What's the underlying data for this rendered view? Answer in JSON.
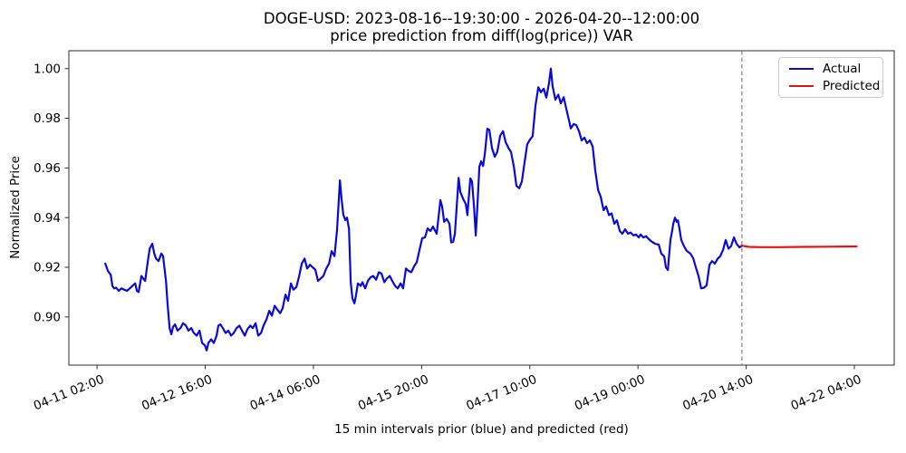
{
  "title": {
    "line1": "DOGE-USD: 2023-08-16--19:30:00 - 2026-04-20--12:00:00",
    "line2": "price prediction from diff(log(price)) VAR"
  },
  "chart_data": {
    "type": "line",
    "title": "DOGE-USD: 2023-08-16--19:30:00 - 2026-04-20--12:00:00\nprice prediction from diff(log(price)) VAR",
    "xlabel": "15 min intervals prior (blue) and predicted (red)",
    "ylabel": "Normalized Price",
    "x_unit": "hours since 04-11 00:00, 15 min interval data",
    "grid": false,
    "legend_position": "upper right",
    "xlim": [
      -7.9,
      282.0
    ],
    "ylim": [
      0.8806,
      1.0072
    ],
    "x_ticks": [
      {
        "pos": 2,
        "label": "04-11 02:00"
      },
      {
        "pos": 40,
        "label": "04-12 16:00"
      },
      {
        "pos": 78,
        "label": "04-14 06:00"
      },
      {
        "pos": 116,
        "label": "04-15 20:00"
      },
      {
        "pos": 154,
        "label": "04-17 10:00"
      },
      {
        "pos": 192,
        "label": "04-19 00:00"
      },
      {
        "pos": 230,
        "label": "04-20 14:00"
      },
      {
        "pos": 268,
        "label": "04-22 04:00"
      }
    ],
    "y_ticks": [
      {
        "pos": 0.9,
        "label": "0.90"
      },
      {
        "pos": 0.92,
        "label": "0.92"
      },
      {
        "pos": 0.94,
        "label": "0.94"
      },
      {
        "pos": 0.96,
        "label": "0.96"
      },
      {
        "pos": 0.98,
        "label": "0.98"
      },
      {
        "pos": 1.0,
        "label": "1.00"
      }
    ],
    "forecast_divider_x": 228.5,
    "divider_color": "#808080",
    "series": [
      {
        "name": "Actual",
        "color": "#0a0ad8",
        "points": [
          [
            4.9,
            0.9215
          ],
          [
            5.8,
            0.9185
          ],
          [
            6.8,
            0.917
          ],
          [
            7.4,
            0.9125
          ],
          [
            8.0,
            0.9115
          ],
          [
            8.7,
            0.9118
          ],
          [
            9.6,
            0.9105
          ],
          [
            10.6,
            0.9115
          ],
          [
            11.5,
            0.911
          ],
          [
            12.5,
            0.9105
          ],
          [
            13.5,
            0.9115
          ],
          [
            14.4,
            0.9125
          ],
          [
            15.4,
            0.9135
          ],
          [
            16.0,
            0.9105
          ],
          [
            16.6,
            0.91
          ],
          [
            17.6,
            0.9165
          ],
          [
            18.2,
            0.9155
          ],
          [
            18.9,
            0.9145
          ],
          [
            19.8,
            0.922
          ],
          [
            20.5,
            0.9275
          ],
          [
            21.4,
            0.9295
          ],
          [
            22.1,
            0.9255
          ],
          [
            22.7,
            0.9235
          ],
          [
            23.6,
            0.9225
          ],
          [
            24.6,
            0.9255
          ],
          [
            25.2,
            0.9245
          ],
          [
            26.2,
            0.9145
          ],
          [
            26.8,
            0.905
          ],
          [
            27.5,
            0.8955
          ],
          [
            28.1,
            0.893
          ],
          [
            28.7,
            0.896
          ],
          [
            29.4,
            0.897
          ],
          [
            30.3,
            0.8945
          ],
          [
            31.3,
            0.8955
          ],
          [
            32.2,
            0.8975
          ],
          [
            33.2,
            0.8965
          ],
          [
            34.1,
            0.8945
          ],
          [
            35.1,
            0.8955
          ],
          [
            36.0,
            0.8935
          ],
          [
            37.0,
            0.8925
          ],
          [
            38.0,
            0.8945
          ],
          [
            38.9,
            0.8895
          ],
          [
            39.9,
            0.8885
          ],
          [
            40.5,
            0.8865
          ],
          [
            41.1,
            0.8895
          ],
          [
            42.1,
            0.891
          ],
          [
            43.0,
            0.8895
          ],
          [
            44.0,
            0.8925
          ],
          [
            44.6,
            0.8965
          ],
          [
            45.3,
            0.897
          ],
          [
            46.2,
            0.8955
          ],
          [
            47.2,
            0.8935
          ],
          [
            48.1,
            0.8945
          ],
          [
            49.1,
            0.8925
          ],
          [
            50.0,
            0.8935
          ],
          [
            51.0,
            0.8955
          ],
          [
            52.0,
            0.8965
          ],
          [
            52.9,
            0.8945
          ],
          [
            53.9,
            0.8925
          ],
          [
            54.8,
            0.895
          ],
          [
            55.8,
            0.8965
          ],
          [
            56.7,
            0.8955
          ],
          [
            57.7,
            0.8975
          ],
          [
            58.6,
            0.8925
          ],
          [
            59.6,
            0.8935
          ],
          [
            60.5,
            0.8965
          ],
          [
            61.5,
            0.899
          ],
          [
            62.5,
            0.9025
          ],
          [
            63.4,
            0.9005
          ],
          [
            64.4,
            0.9045
          ],
          [
            65.3,
            0.903
          ],
          [
            66.3,
            0.9015
          ],
          [
            67.2,
            0.9035
          ],
          [
            68.2,
            0.909
          ],
          [
            69.1,
            0.9065
          ],
          [
            70.1,
            0.9135
          ],
          [
            71.0,
            0.911
          ],
          [
            72.0,
            0.912
          ],
          [
            73.0,
            0.9165
          ],
          [
            73.9,
            0.9215
          ],
          [
            74.9,
            0.9235
          ],
          [
            75.8,
            0.9195
          ],
          [
            76.8,
            0.921
          ],
          [
            77.7,
            0.92
          ],
          [
            78.7,
            0.919
          ],
          [
            79.6,
            0.9145
          ],
          [
            80.6,
            0.9155
          ],
          [
            81.5,
            0.9165
          ],
          [
            82.5,
            0.9195
          ],
          [
            83.5,
            0.9215
          ],
          [
            84.4,
            0.9265
          ],
          [
            85.4,
            0.9245
          ],
          [
            86.3,
            0.935
          ],
          [
            87.3,
            0.955
          ],
          [
            87.9,
            0.9475
          ],
          [
            88.5,
            0.9412
          ],
          [
            89.2,
            0.939
          ],
          [
            89.8,
            0.94
          ],
          [
            90.5,
            0.9355
          ],
          [
            91.1,
            0.914
          ],
          [
            91.7,
            0.9075
          ],
          [
            92.4,
            0.9055
          ],
          [
            93.0,
            0.909
          ],
          [
            93.6,
            0.9135
          ],
          [
            94.6,
            0.9125
          ],
          [
            95.2,
            0.914
          ],
          [
            96.2,
            0.9115
          ],
          [
            97.1,
            0.9145
          ],
          [
            98.1,
            0.916
          ],
          [
            99.0,
            0.9165
          ],
          [
            100.0,
            0.915
          ],
          [
            101.0,
            0.918
          ],
          [
            101.9,
            0.9175
          ],
          [
            102.9,
            0.914
          ],
          [
            103.8,
            0.9155
          ],
          [
            104.8,
            0.9165
          ],
          [
            105.7,
            0.9145
          ],
          [
            106.7,
            0.9125
          ],
          [
            107.6,
            0.9115
          ],
          [
            108.6,
            0.9135
          ],
          [
            109.5,
            0.9115
          ],
          [
            110.5,
            0.9195
          ],
          [
            111.5,
            0.9185
          ],
          [
            112.4,
            0.918
          ],
          [
            113.4,
            0.9205
          ],
          [
            114.3,
            0.922
          ],
          [
            115.3,
            0.9273
          ],
          [
            116.2,
            0.9317
          ],
          [
            117.2,
            0.932
          ],
          [
            118.1,
            0.9357
          ],
          [
            119.1,
            0.9346
          ],
          [
            120.0,
            0.9364
          ],
          [
            121.3,
            0.9335
          ],
          [
            122.6,
            0.947
          ],
          [
            123.2,
            0.9445
          ],
          [
            123.9,
            0.9383
          ],
          [
            124.8,
            0.9395
          ],
          [
            125.8,
            0.9375
          ],
          [
            126.4,
            0.93
          ],
          [
            127.1,
            0.9302
          ],
          [
            127.7,
            0.9335
          ],
          [
            129.0,
            0.956
          ],
          [
            129.6,
            0.9503
          ],
          [
            130.6,
            0.9475
          ],
          [
            131.5,
            0.9455
          ],
          [
            132.1,
            0.941
          ],
          [
            133.1,
            0.9558
          ],
          [
            133.7,
            0.9545
          ],
          [
            134.4,
            0.9445
          ],
          [
            135.0,
            0.9328
          ],
          [
            135.6,
            0.9445
          ],
          [
            136.3,
            0.9605
          ],
          [
            136.9,
            0.9627
          ],
          [
            137.6,
            0.9608
          ],
          [
            138.2,
            0.9655
          ],
          [
            139.1,
            0.9758
          ],
          [
            139.8,
            0.9754
          ],
          [
            140.7,
            0.968
          ],
          [
            141.7,
            0.9645
          ],
          [
            142.6,
            0.9665
          ],
          [
            143.6,
            0.973
          ],
          [
            144.6,
            0.9748
          ],
          [
            145.5,
            0.9704
          ],
          [
            146.5,
            0.968
          ],
          [
            147.4,
            0.9665
          ],
          [
            148.4,
            0.9605
          ],
          [
            149.3,
            0.9528
          ],
          [
            150.3,
            0.9518
          ],
          [
            151.2,
            0.9545
          ],
          [
            152.2,
            0.9625
          ],
          [
            153.1,
            0.9695
          ],
          [
            154.1,
            0.9715
          ],
          [
            155.0,
            0.9728
          ],
          [
            156.0,
            0.985
          ],
          [
            157.0,
            0.9925
          ],
          [
            157.9,
            0.9905
          ],
          [
            158.9,
            0.9919
          ],
          [
            159.8,
            0.9883
          ],
          [
            160.8,
            0.9945
          ],
          [
            161.4,
            1.0
          ],
          [
            162.0,
            0.993
          ],
          [
            163.0,
            0.9875
          ],
          [
            164.0,
            0.9895
          ],
          [
            164.9,
            0.986
          ],
          [
            165.9,
            0.9885
          ],
          [
            166.8,
            0.9839
          ],
          [
            167.8,
            0.9791
          ],
          [
            168.4,
            0.9759
          ],
          [
            169.4,
            0.9777
          ],
          [
            170.3,
            0.9773
          ],
          [
            171.3,
            0.9748
          ],
          [
            172.2,
            0.9711
          ],
          [
            173.2,
            0.9722
          ],
          [
            174.1,
            0.97
          ],
          [
            175.1,
            0.9711
          ],
          [
            176.1,
            0.9686
          ],
          [
            177.0,
            0.959
          ],
          [
            178.0,
            0.951
          ],
          [
            178.9,
            0.9485
          ],
          [
            179.9,
            0.943
          ],
          [
            180.8,
            0.9445
          ],
          [
            181.8,
            0.941
          ],
          [
            182.7,
            0.9417
          ],
          [
            183.7,
            0.9375
          ],
          [
            184.6,
            0.9389
          ],
          [
            185.6,
            0.9346
          ],
          [
            186.5,
            0.9335
          ],
          [
            187.5,
            0.9353
          ],
          [
            188.5,
            0.9335
          ],
          [
            189.4,
            0.934
          ],
          [
            190.4,
            0.9328
          ],
          [
            191.3,
            0.9332
          ],
          [
            192.3,
            0.932
          ],
          [
            192.9,
            0.9332
          ],
          [
            193.9,
            0.932
          ],
          [
            194.8,
            0.9325
          ],
          [
            196.1,
            0.931
          ],
          [
            197.0,
            0.9302
          ],
          [
            198.0,
            0.9295
          ],
          [
            199.3,
            0.9291
          ],
          [
            200.2,
            0.9255
          ],
          [
            201.2,
            0.9244
          ],
          [
            201.8,
            0.92
          ],
          [
            202.5,
            0.9189
          ],
          [
            202.8,
            0.923
          ],
          [
            203.4,
            0.931
          ],
          [
            204.1,
            0.9353
          ],
          [
            204.4,
            0.9375
          ],
          [
            205.0,
            0.94
          ],
          [
            205.6,
            0.9383
          ],
          [
            206.0,
            0.9389
          ],
          [
            206.6,
            0.9353
          ],
          [
            207.2,
            0.931
          ],
          [
            207.5,
            0.9302
          ],
          [
            208.2,
            0.9284
          ],
          [
            209.1,
            0.9266
          ],
          [
            210.4,
            0.9255
          ],
          [
            211.4,
            0.9237
          ],
          [
            212.3,
            0.92
          ],
          [
            213.3,
            0.9163
          ],
          [
            214.2,
            0.9115
          ],
          [
            215.2,
            0.9118
          ],
          [
            216.1,
            0.9127
          ],
          [
            217.1,
            0.921
          ],
          [
            218.0,
            0.9225
          ],
          [
            219.0,
            0.9215
          ],
          [
            220.0,
            0.9235
          ],
          [
            220.9,
            0.9245
          ],
          [
            221.9,
            0.927
          ],
          [
            222.8,
            0.931
          ],
          [
            223.8,
            0.9275
          ],
          [
            224.7,
            0.9285
          ],
          [
            225.7,
            0.932
          ],
          [
            226.6,
            0.9295
          ],
          [
            227.6,
            0.928
          ],
          [
            228.5,
            0.9287
          ]
        ]
      },
      {
        "name": "Predicted",
        "color": "#e51414",
        "points": [
          [
            228.5,
            0.9287
          ],
          [
            231.0,
            0.9282
          ],
          [
            235.0,
            0.9281
          ],
          [
            242.0,
            0.9281
          ],
          [
            250.0,
            0.9282
          ],
          [
            258.0,
            0.9283
          ],
          [
            268.8,
            0.9284
          ]
        ]
      }
    ]
  }
}
